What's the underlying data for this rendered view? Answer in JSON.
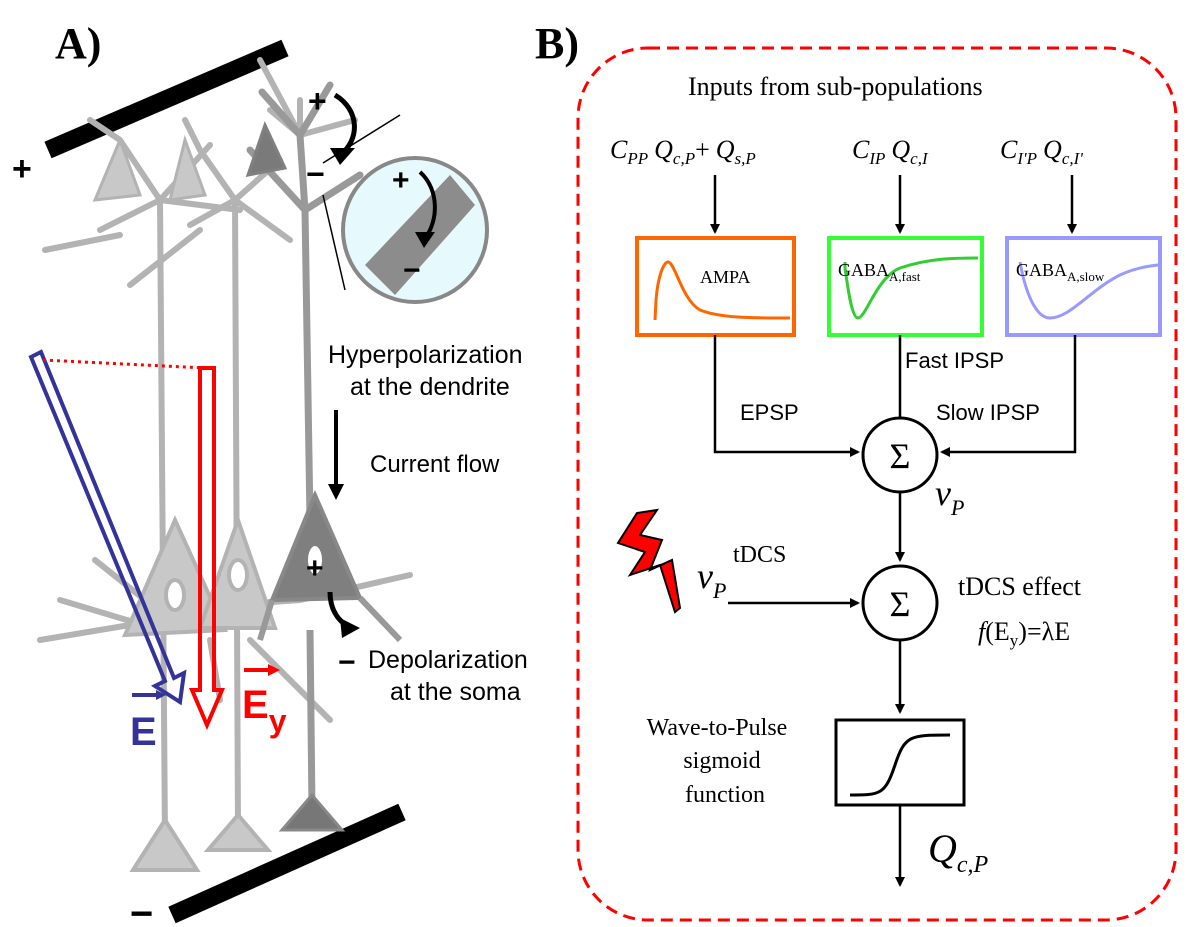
{
  "panel_a": {
    "label": "A)",
    "plus_top": "+",
    "minus_bottom": "−",
    "dendrite_plus": "+",
    "dendrite_minus": "−",
    "inset_plus": "+",
    "inset_minus": "−",
    "soma_plus": "+",
    "soma_minus": "−",
    "hyperpolarization": [
      "Hyperpolarization",
      "at the dendrite"
    ],
    "current_flow": "Current flow",
    "depolarization": [
      "Depolarization",
      "at the soma"
    ],
    "field_e": "E",
    "field_ey": "E",
    "field_ey_sub": "y"
  },
  "panel_b": {
    "label": "B)",
    "inputs_title": "Inputs from sub-populations",
    "input_ampa": {
      "c": "C",
      "c_sub": "PP",
      "q1": "Q",
      "q1_sub": "c,P",
      "plus": "+",
      "q2": "Q",
      "q2_sub": "s,P"
    },
    "input_gaba_fast": {
      "c": "C",
      "c_sub": "IP",
      "q": "Q",
      "q_sub": "c,I"
    },
    "input_gaba_slow": {
      "c": "C",
      "c_sub": "I'P",
      "q": "Q",
      "q_sub": "c,I'"
    },
    "box_ampa": "AMPA",
    "box_gaba_fast": {
      "main": "GABA",
      "sub": "A,fast"
    },
    "box_gaba_slow": {
      "main": "GABA",
      "sub": "A,slow"
    },
    "epsp": "EPSP",
    "fast_ipsp": "Fast IPSP",
    "slow_ipsp": "Slow IPSP",
    "sum_symbol": "Σ",
    "vp": {
      "v": "v",
      "sub": "P"
    },
    "vp_tdcs": {
      "v": "v",
      "sub": "P",
      "sup": "tDCS"
    },
    "tdcs_effect": "tDCS effect",
    "tdcs_formula": {
      "f": "f",
      "open": "(E",
      "sub": "y",
      "close": ")=λE"
    },
    "sigmoid_label": [
      "Wave-to-Pulse",
      "sigmoid",
      "function"
    ],
    "output": {
      "q": "Q",
      "sub": "c,P"
    }
  },
  "colors": {
    "neuron_light": "#b3b3b3",
    "neuron_dark": "#808080",
    "field_e": "#333399",
    "field_ey": "#ff0000",
    "ampa": "#ff6600",
    "gaba_fast": "#33ff33",
    "gaba_slow": "#9999ff",
    "dashed_border": "#ff0000",
    "inset_fill": "#e6fafd"
  }
}
